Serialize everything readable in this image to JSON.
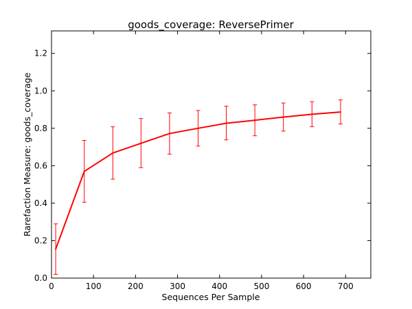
{
  "chart_data": {
    "type": "line",
    "title": "goods_coverage: ReversePrimer",
    "xlabel": "Sequences Per Sample",
    "ylabel": "Rarefaction Measure: goods_coverage",
    "xlim": [
      0,
      760
    ],
    "ylim": [
      0.0,
      1.32
    ],
    "xticks": [
      0,
      100,
      200,
      300,
      400,
      500,
      600,
      700
    ],
    "yticks": [
      0.0,
      0.2,
      0.4,
      0.6,
      0.8,
      1.0,
      1.2
    ],
    "xtick_labels": [
      "0",
      "100",
      "200",
      "300",
      "400",
      "500",
      "600",
      "700"
    ],
    "ytick_labels": [
      "0.0",
      "0.2",
      "0.4",
      "0.6",
      "0.8",
      "1.0",
      "1.2"
    ],
    "grid": false,
    "series": [
      {
        "color": "#ff0000",
        "x": [
          10,
          78,
          146,
          213,
          281,
          349,
          416,
          484,
          552,
          620,
          688
        ],
        "y": [
          0.155,
          0.57,
          0.668,
          0.72,
          0.772,
          0.8,
          0.827,
          0.843,
          0.86,
          0.875,
          0.887
        ],
        "err_low": [
          0.02,
          0.405,
          0.528,
          0.59,
          0.662,
          0.705,
          0.738,
          0.76,
          0.785,
          0.808,
          0.823
        ],
        "err_high": [
          0.29,
          0.735,
          0.808,
          0.852,
          0.882,
          0.895,
          0.918,
          0.925,
          0.935,
          0.942,
          0.952
        ]
      }
    ]
  }
}
